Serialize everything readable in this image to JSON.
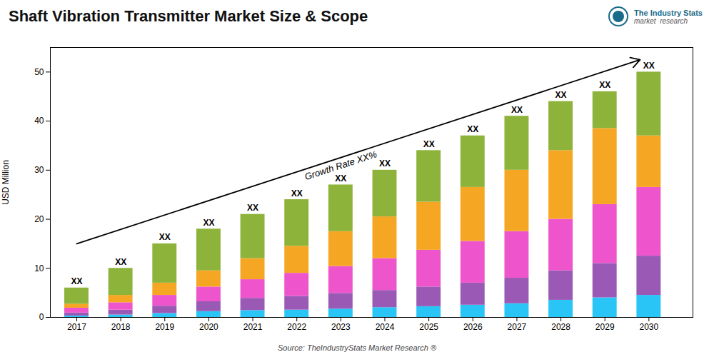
{
  "chart_data": {
    "type": "bar",
    "stacked": true,
    "title": "Shaft Vibration Transmitter Market Size & Scope",
    "ylabel": "USD Million",
    "source": "Source: TheIndustryStats Market Research ®",
    "logo_text": [
      "The Industry Stats",
      "market  research"
    ],
    "x": [
      2017,
      2018,
      2019,
      2020,
      2021,
      2022,
      2023,
      2024,
      2025,
      2026,
      2027,
      2028,
      2029,
      2030
    ],
    "series": [
      {
        "color": "#29C5F6",
        "values": [
          0.3,
          0.5,
          0.8,
          1.2,
          1.4,
          1.5,
          1.7,
          2.0,
          2.2,
          2.5,
          2.8,
          3.5,
          4.0,
          4.5
        ]
      },
      {
        "color": "#9B59B6",
        "values": [
          0.6,
          1.0,
          1.5,
          2.0,
          2.5,
          2.8,
          3.2,
          3.5,
          4.0,
          4.5,
          5.2,
          6.0,
          7.0,
          8.0
        ]
      },
      {
        "color": "#EE55CC",
        "values": [
          1.0,
          1.5,
          2.2,
          3.0,
          3.8,
          4.7,
          5.5,
          6.5,
          7.5,
          8.5,
          9.5,
          10.5,
          12.0,
          14.0
        ]
      },
      {
        "color": "#F5A623",
        "values": [
          0.8,
          1.5,
          2.5,
          3.3,
          4.3,
          5.5,
          7.1,
          8.5,
          9.8,
          11.0,
          12.5,
          14.0,
          15.5,
          10.5
        ]
      },
      {
        "color": "#8DB33A",
        "values": [
          3.3,
          5.5,
          8.0,
          8.5,
          9.0,
          9.5,
          9.5,
          9.5,
          10.5,
          10.5,
          11.0,
          10.0,
          7.5,
          13.0
        ]
      }
    ],
    "total_labels": [
      "XX",
      "XX",
      "XX",
      "XX",
      "XX",
      "XX",
      "XX",
      "XX",
      "XX",
      "XX",
      "XX",
      "XX",
      "XX",
      "XX"
    ],
    "arrow": {
      "x0": 2017.0,
      "y0": 15.0,
      "x1": 2029.8,
      "y1": 52.5
    },
    "annotations": [
      {
        "text": "Growth Rate XX%",
        "x": 2023.0,
        "y": 31.5
      }
    ],
    "xlim": [
      2016.4,
      2031.0
    ],
    "xticks": [
      2017,
      2018,
      2019,
      2020,
      2021,
      2022,
      2023,
      2024,
      2025,
      2026,
      2027,
      2028,
      2029,
      2030
    ],
    "ylim": [
      0,
      55
    ],
    "yticks": [
      0,
      10,
      20,
      30,
      40,
      50
    ],
    "grid": false
  }
}
